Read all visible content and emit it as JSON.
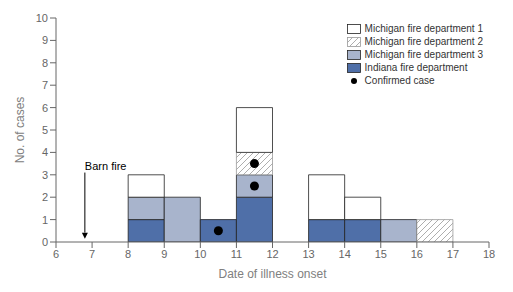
{
  "chart_data": {
    "type": "bar",
    "stacked": true,
    "xlabel": "Date of illness onset",
    "ylabel": "No. of cases",
    "bins": [
      6,
      7,
      8,
      9,
      10,
      11,
      12,
      13,
      14,
      15,
      16,
      17,
      18
    ],
    "series": [
      {
        "name": "Indiana fire department",
        "color": "#4F6FA8",
        "values": [
          0,
          0,
          1,
          0,
          1,
          2,
          0,
          1,
          1,
          0,
          0,
          0
        ]
      },
      {
        "name": "Michigan fire department 3",
        "color": "#A8B4CC",
        "values": [
          0,
          0,
          1,
          2,
          0,
          1,
          0,
          0,
          0,
          1,
          0,
          0
        ]
      },
      {
        "name": "Michigan fire department 2",
        "color": "white",
        "values": [
          0,
          0,
          0,
          0,
          0,
          1,
          0,
          0,
          0,
          0,
          1,
          0
        ]
      },
      {
        "name": "Michigan fire department 1",
        "color": "white",
        "values": [
          0,
          0,
          1,
          0,
          0,
          2,
          0,
          2,
          1,
          0,
          0,
          0
        ]
      },
      {
        "name": "Confirmed case",
        "type": "scatter",
        "color": "black",
        "x": [
          10.5,
          11.5,
          11.5
        ],
        "values": [
          0.5,
          2.5,
          3.5
        ]
      }
    ],
    "xlim": [
      6,
      18
    ],
    "xticks": [
      6,
      7,
      8,
      9,
      10,
      11,
      12,
      13,
      14,
      15,
      16,
      17,
      18
    ],
    "ylim": [
      0,
      10
    ],
    "yticks": [
      0,
      1,
      2,
      3,
      4,
      5,
      6,
      7,
      8,
      9,
      10
    ],
    "annotations": [
      {
        "text": "Barn fire",
        "x": 6.8,
        "y": 3.1,
        "arrow_x": 6.8,
        "arrow_y": 0.15
      }
    ],
    "grid": false,
    "legend": "upper right"
  }
}
